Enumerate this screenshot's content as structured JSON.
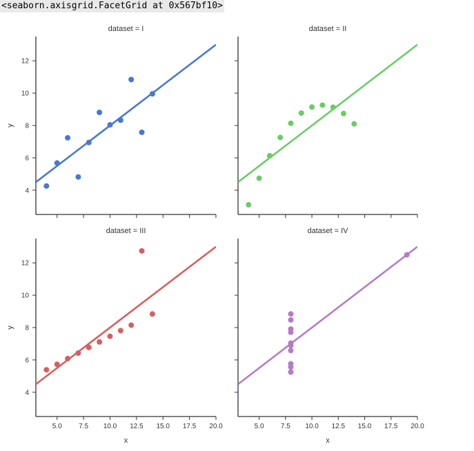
{
  "output_repr": "<seaborn.axisgrid.FacetGrid at 0x567bf10>",
  "chart_data": [
    {
      "type": "scatter",
      "title": "dataset = I",
      "xlabel": "",
      "ylabel": "y",
      "color": "#4878cf",
      "x": [
        10,
        8,
        13,
        9,
        11,
        14,
        6,
        4,
        12,
        7,
        5
      ],
      "y": [
        8.04,
        6.95,
        7.58,
        8.81,
        8.33,
        9.96,
        7.24,
        4.26,
        10.84,
        4.82,
        5.68
      ],
      "fit": {
        "intercept": 3.0,
        "slope": 0.5
      },
      "xlim": [
        3,
        20
      ],
      "ylim": [
        2.5,
        13.5
      ],
      "xticks": [
        5.0,
        7.5,
        10.0,
        12.5,
        15.0,
        17.5,
        20.0
      ],
      "yticks": [
        4,
        6,
        8,
        10,
        12
      ],
      "show_xticklabels": false,
      "show_yticklabels": true
    },
    {
      "type": "scatter",
      "title": "dataset = II",
      "xlabel": "",
      "ylabel": "",
      "color": "#6acc65",
      "x": [
        10,
        8,
        13,
        9,
        11,
        14,
        6,
        4,
        12,
        7,
        5
      ],
      "y": [
        9.14,
        8.14,
        8.74,
        8.77,
        9.26,
        8.1,
        6.13,
        3.1,
        9.13,
        7.26,
        4.74
      ],
      "fit": {
        "intercept": 3.0,
        "slope": 0.5
      },
      "xlim": [
        3,
        20
      ],
      "ylim": [
        2.5,
        13.5
      ],
      "xticks": [
        5.0,
        7.5,
        10.0,
        12.5,
        15.0,
        17.5,
        20.0
      ],
      "yticks": [
        4,
        6,
        8,
        10,
        12
      ],
      "show_xticklabels": false,
      "show_yticklabels": false
    },
    {
      "type": "scatter",
      "title": "dataset = III",
      "xlabel": "x",
      "ylabel": "y",
      "color": "#d65f5f",
      "x": [
        10,
        8,
        13,
        9,
        11,
        14,
        6,
        4,
        12,
        7,
        5
      ],
      "y": [
        7.46,
        6.77,
        12.74,
        7.11,
        7.81,
        8.84,
        6.08,
        5.39,
        8.15,
        6.42,
        5.73
      ],
      "fit": {
        "intercept": 3.0,
        "slope": 0.5
      },
      "xlim": [
        3,
        20
      ],
      "ylim": [
        2.5,
        13.5
      ],
      "xticks": [
        5.0,
        7.5,
        10.0,
        12.5,
        15.0,
        17.5,
        20.0
      ],
      "yticks": [
        4,
        6,
        8,
        10,
        12
      ],
      "show_xticklabels": true,
      "show_yticklabels": true
    },
    {
      "type": "scatter",
      "title": "dataset = IV",
      "xlabel": "x",
      "ylabel": "",
      "color": "#b47cc7",
      "x": [
        8,
        8,
        8,
        8,
        8,
        8,
        8,
        19,
        8,
        8,
        8
      ],
      "y": [
        6.58,
        5.76,
        7.71,
        8.84,
        8.47,
        7.04,
        5.25,
        12.5,
        5.56,
        7.91,
        6.89
      ],
      "fit": {
        "intercept": 3.0,
        "slope": 0.5
      },
      "xlim": [
        3,
        20
      ],
      "ylim": [
        2.5,
        13.5
      ],
      "xticks": [
        5.0,
        7.5,
        10.0,
        12.5,
        15.0,
        17.5,
        20.0
      ],
      "yticks": [
        4,
        6,
        8,
        10,
        12
      ],
      "show_xticklabels": true,
      "show_yticklabels": false
    }
  ]
}
